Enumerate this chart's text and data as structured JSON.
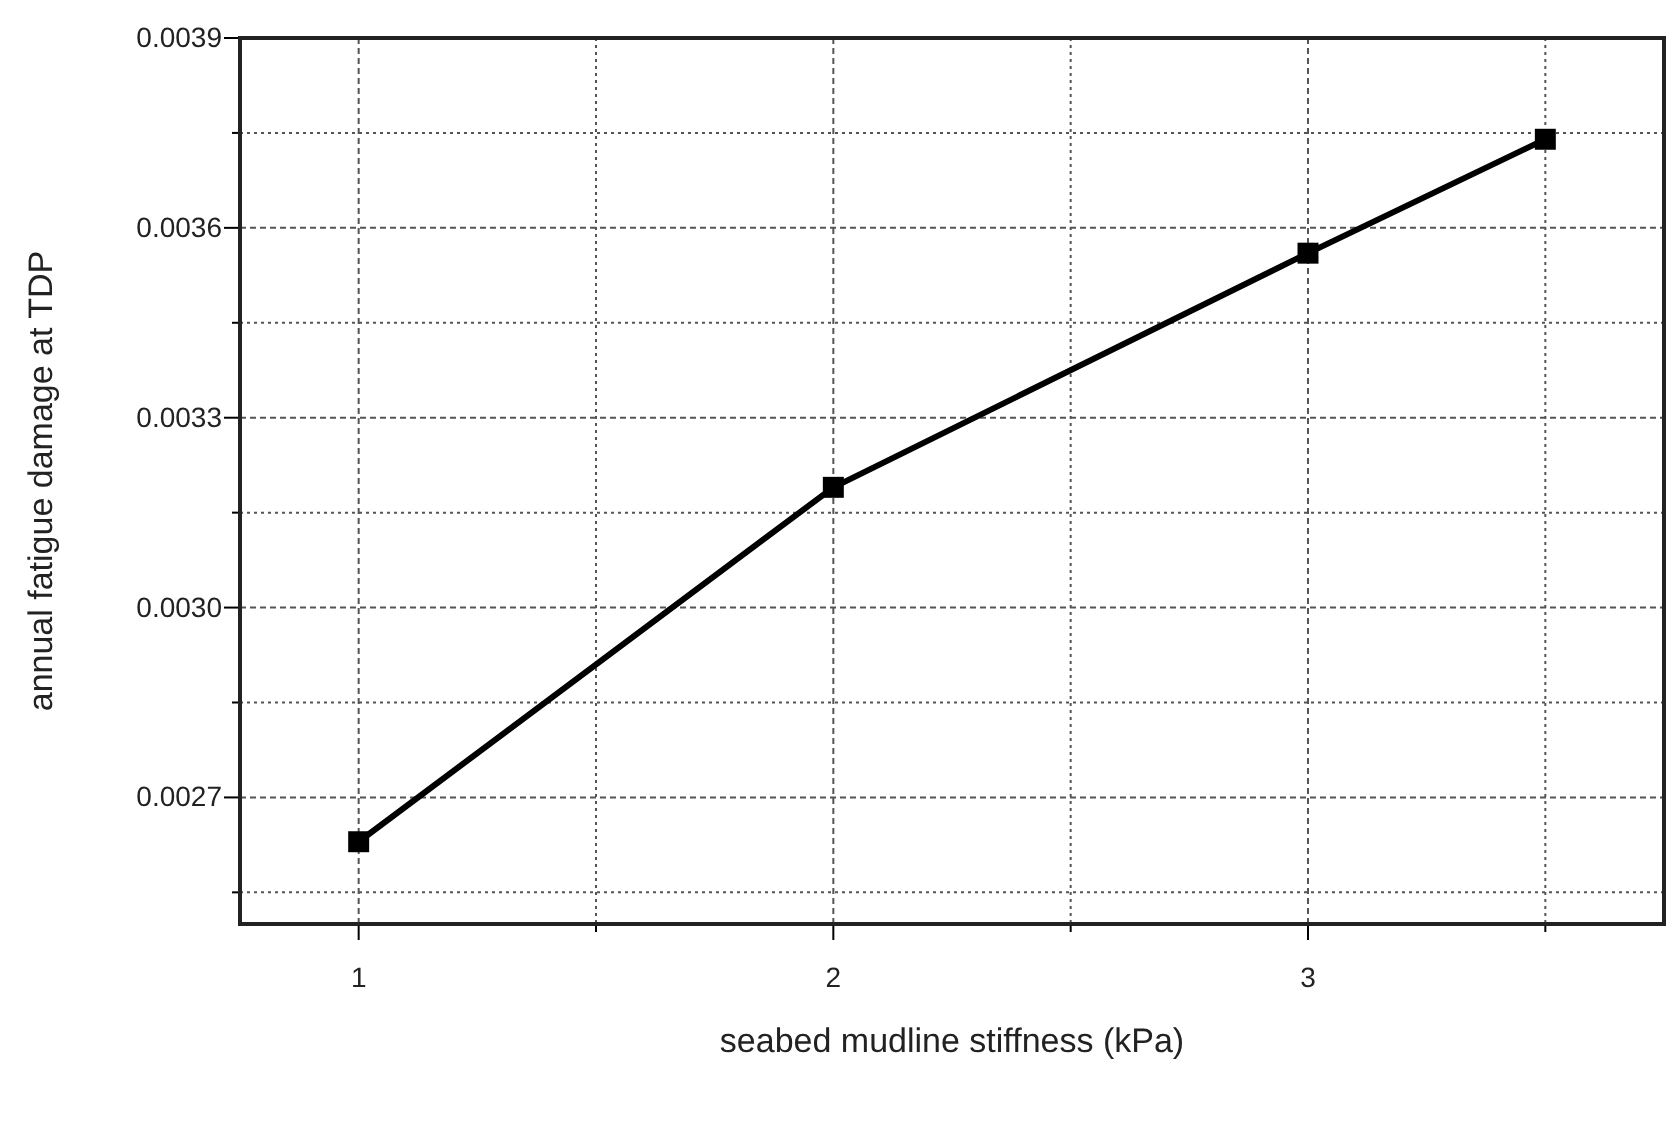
{
  "chart_data": {
    "type": "line",
    "xlabel": "seabed mudline stiffness (kPa)",
    "ylabel": "annual fatigue damage at TDP",
    "x": [
      1,
      2,
      3,
      3.5
    ],
    "series": [
      {
        "color": "#000000",
        "values": [
          0.00263,
          0.00319,
          0.00356,
          0.00374
        ]
      }
    ],
    "xlim": [
      0.75,
      3.75
    ],
    "ylim": [
      0.0025,
      0.0039
    ],
    "xticks": [
      1,
      {
        "value": 1.5,
        "label": null
      },
      2,
      {
        "value": 2.5,
        "label": null
      },
      3,
      {
        "value": 3.5,
        "label": null
      }
    ],
    "yticks": [
      {
        "value": 0.00255,
        "label": null
      },
      {
        "value": 0.0027,
        "label": "0.0027"
      },
      {
        "value": 0.00285,
        "label": null
      },
      {
        "value": 0.003,
        "label": "0.0030"
      },
      {
        "value": 0.00315,
        "label": null
      },
      {
        "value": 0.0033,
        "label": "0.0033"
      },
      {
        "value": 0.00345,
        "label": null
      },
      {
        "value": 0.0036,
        "label": "0.0036"
      },
      {
        "value": 0.00375,
        "label": null
      },
      {
        "value": 0.0039,
        "label": "0.0039"
      }
    ],
    "grid": true,
    "marker": "square",
    "line_style": "solid"
  }
}
